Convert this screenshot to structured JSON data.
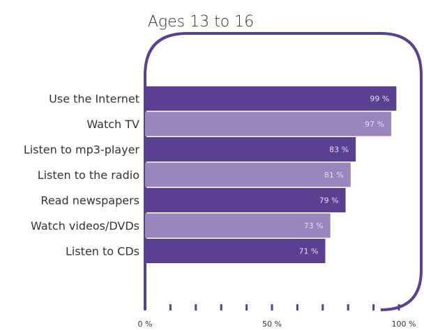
{
  "chart_data": {
    "type": "bar",
    "orientation": "horizontal",
    "title": "Ages 13 to 16",
    "categories": [
      "Use the Internet",
      "Watch TV",
      "Listen to mp3-player",
      "Listen to the radio",
      "Read newspapers",
      "Watch videos/DVDs",
      "Listen to CDs"
    ],
    "values": [
      99,
      97,
      83,
      81,
      79,
      73,
      71
    ],
    "value_labels": [
      "99 %",
      "97 %",
      "83 %",
      "81 %",
      "79 %",
      "73 %",
      "71 %"
    ],
    "xlim": [
      0,
      100
    ],
    "x_tick_labels": [
      "0 %",
      "50 %",
      "100 %"
    ],
    "x_tick_values": [
      0,
      50,
      100
    ],
    "grid": false,
    "colors": {
      "dark": "#5b3f90",
      "light": "#9a86bd",
      "frame": "#5b3f90",
      "text": "#333333",
      "value_text": "#e4dcf0"
    }
  }
}
